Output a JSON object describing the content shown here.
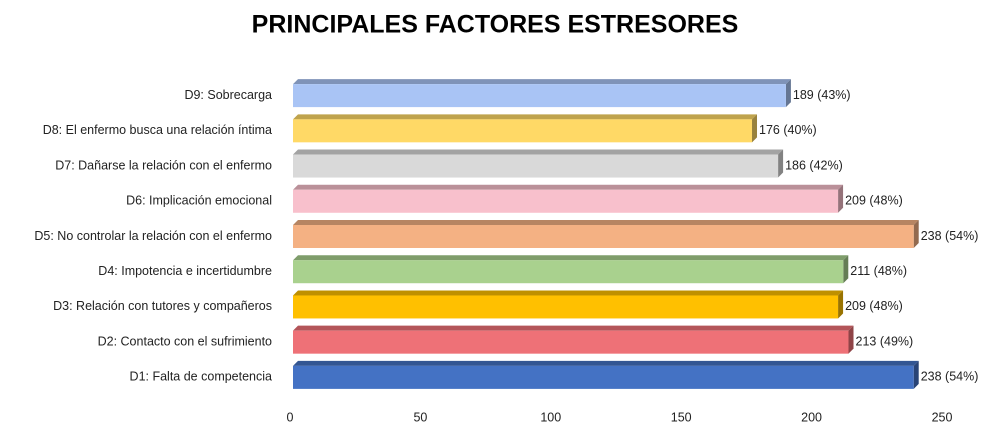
{
  "chart_data": {
    "type": "bar",
    "orientation": "horizontal",
    "title": "PRINCIPALES FACTORES ESTRESORES",
    "categories": [
      "D1: Falta de competencia",
      "D2: Contacto con el sufrimiento",
      "D3: Relación con tutores y compañeros",
      "D4: Impotencia e incertidumbre",
      "D5: No controlar la relación con el enfermo",
      "D6: Implicación emocional",
      "D7: Dañarse la relación con el enfermo",
      "D8: El enfermo busca una relación íntima",
      "D9: Sobrecarga"
    ],
    "values": [
      238,
      213,
      209,
      211,
      238,
      209,
      186,
      176,
      189
    ],
    "value_labels": [
      "238 (54%)",
      "213 (49%)",
      "209 (48%)",
      "211 (48%)",
      "238 (54%)",
      "209 (48%)",
      "186 (42%)",
      "176 (40%)",
      "189 (43%)"
    ],
    "colors": [
      "#4472c4",
      "#ee7177",
      "#ffc000",
      "#a9d18e",
      "#f4b183",
      "#f8c0cc",
      "#d9d9d9",
      "#ffd966",
      "#a9c4f5"
    ],
    "xlim": [
      0,
      250
    ],
    "xticks": [
      0,
      50,
      100,
      150,
      200,
      250
    ],
    "grid": false
  }
}
